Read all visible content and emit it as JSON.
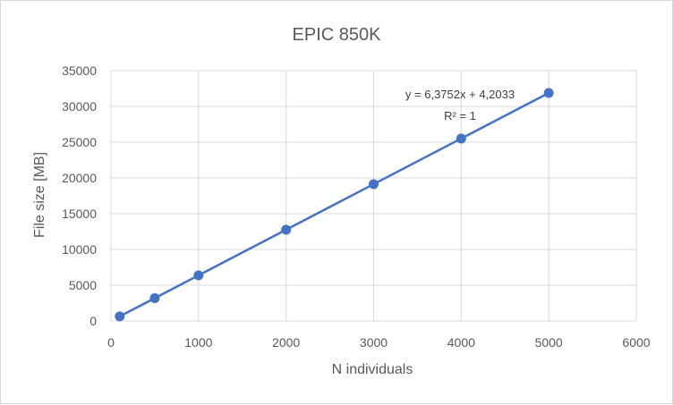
{
  "chart_data": {
    "type": "scatter",
    "title": "EPIC 850K",
    "xlabel": "N individuals",
    "ylabel": "File size [MB]",
    "xlim": [
      0,
      6000
    ],
    "ylim": [
      0,
      35000
    ],
    "xticks": [
      0,
      1000,
      2000,
      3000,
      4000,
      5000,
      6000
    ],
    "yticks": [
      0,
      5000,
      10000,
      15000,
      20000,
      25000,
      30000,
      35000
    ],
    "grid": true,
    "legend": "none",
    "series": [
      {
        "x": [
          100,
          500,
          1000,
          2000,
          3000,
          4000,
          5000
        ],
        "y": [
          640,
          3190,
          6380,
          12750,
          19130,
          25500,
          31880
        ]
      }
    ],
    "trendline": {
      "type": "linear",
      "equation": "y = 6,3752x + 4,2033",
      "r2": "R² = 1",
      "slope": 6.3752,
      "intercept": 4.2033
    },
    "colors": {
      "series": "#4472c4",
      "grid": "#d9d9d9",
      "text": "#595959"
    }
  }
}
